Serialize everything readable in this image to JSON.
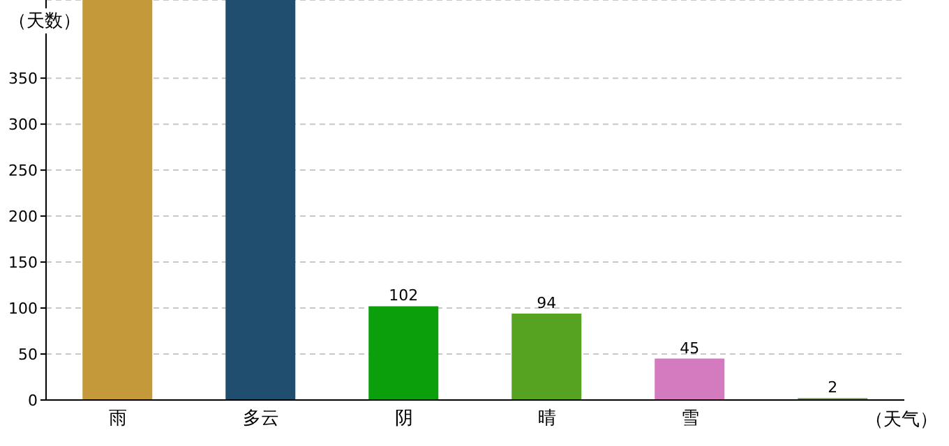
{
  "chart_data": {
    "type": "bar",
    "xlabel": "（天气）",
    "ylabel": "（天数）",
    "categories": [
      "雨",
      "多云",
      "阴",
      "晴",
      "雪",
      null
    ],
    "values": [
      435,
      435,
      102,
      94,
      45,
      2
    ],
    "colors": [
      "#c4993a",
      "#1f4e6e",
      "#0c9f0c",
      "#56a322",
      "#d47bc0",
      "#7f9a5e"
    ],
    "value_labels": [
      null,
      null,
      "102",
      "94",
      "45",
      "2"
    ],
    "ylim": [
      0,
      435
    ],
    "yticks": [
      0,
      50,
      100,
      150,
      200,
      250,
      300,
      350
    ],
    "grid": "y"
  }
}
